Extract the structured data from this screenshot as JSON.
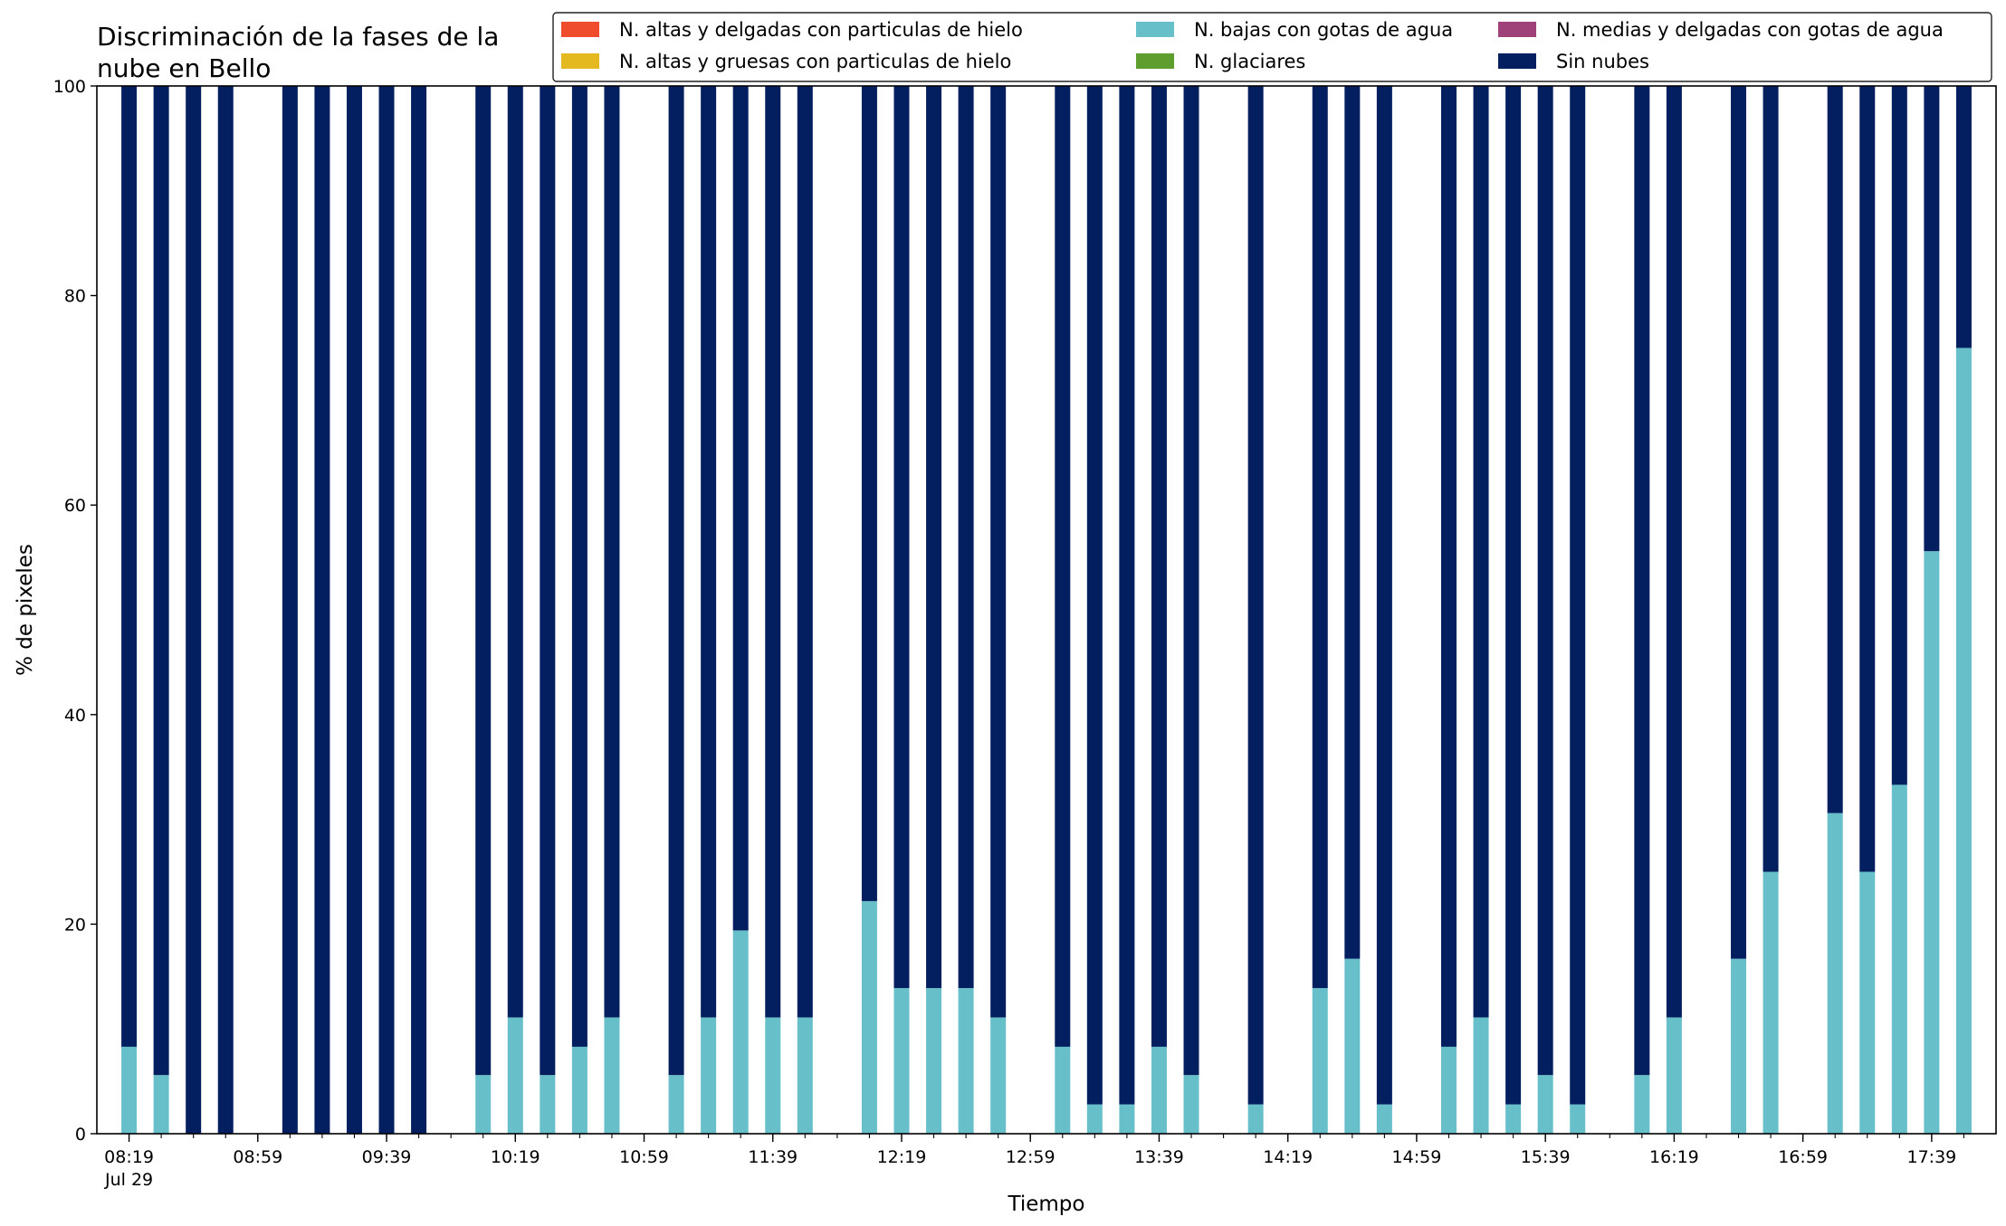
{
  "chart_data": {
    "type": "bar",
    "stacked": true,
    "title": "Discriminación de la fases de la\nnube en Bello",
    "xlabel": "Tiempo",
    "ylabel": "% de pixeles",
    "ylim": [
      0,
      100
    ],
    "yticks": [
      0,
      20,
      40,
      60,
      80,
      100
    ],
    "grid": false,
    "legend_position": "top-right",
    "x_start": "08:19",
    "x_step_minutes": 10,
    "x_count": 58,
    "x_end": "17:49",
    "xtick_labels": [
      "08:19\nJul 29",
      "08:59",
      "09:39",
      "10:19",
      "10:59",
      "11:39",
      "12:19",
      "12:59",
      "13:39",
      "14:19",
      "14:59",
      "15:39",
      "16:19",
      "16:59",
      "17:39"
    ],
    "xtick_label_times": [
      "08:19",
      "08:59",
      "09:39",
      "10:19",
      "10:59",
      "11:39",
      "12:19",
      "12:59",
      "13:39",
      "14:19",
      "14:59",
      "15:39",
      "16:19",
      "16:59",
      "17:39"
    ],
    "series": [
      {
        "name": "N. altas y delgadas con particulas de hielo",
        "color": "#ee4c2c",
        "values": []
      },
      {
        "name": "N. altas y gruesas con particulas de hielo",
        "color": "#e4b81f",
        "values": []
      },
      {
        "name": "N. bajas con gotas de agua",
        "color": "#67bfca",
        "values": [
          {
            "time": "08:19",
            "value": 8.3
          },
          {
            "time": "08:29",
            "value": 5.6
          },
          {
            "time": "08:39",
            "value": 0
          },
          {
            "time": "08:49",
            "value": 0
          },
          {
            "time": "09:09",
            "value": 0
          },
          {
            "time": "09:19",
            "value": 0
          },
          {
            "time": "09:29",
            "value": 0
          },
          {
            "time": "09:39",
            "value": 0
          },
          {
            "time": "09:49",
            "value": 0
          },
          {
            "time": "10:09",
            "value": 5.6
          },
          {
            "time": "10:19",
            "value": 11.1
          },
          {
            "time": "10:29",
            "value": 5.6
          },
          {
            "time": "10:39",
            "value": 8.3
          },
          {
            "time": "10:49",
            "value": 11.1
          },
          {
            "time": "11:09",
            "value": 5.6
          },
          {
            "time": "11:19",
            "value": 11.1
          },
          {
            "time": "11:29",
            "value": 19.4
          },
          {
            "time": "11:39",
            "value": 11.1
          },
          {
            "time": "11:49",
            "value": 11.1
          },
          {
            "time": "12:09",
            "value": 22.2
          },
          {
            "time": "12:19",
            "value": 13.9
          },
          {
            "time": "12:29",
            "value": 13.9
          },
          {
            "time": "12:39",
            "value": 13.9
          },
          {
            "time": "12:49",
            "value": 11.1
          },
          {
            "time": "13:09",
            "value": 8.3
          },
          {
            "time": "13:19",
            "value": 2.8
          },
          {
            "time": "13:29",
            "value": 2.8
          },
          {
            "time": "13:39",
            "value": 8.3
          },
          {
            "time": "13:49",
            "value": 5.6
          },
          {
            "time": "14:09",
            "value": 2.8
          },
          {
            "time": "14:29",
            "value": 13.9
          },
          {
            "time": "14:39",
            "value": 16.7
          },
          {
            "time": "14:49",
            "value": 2.8
          },
          {
            "time": "15:09",
            "value": 8.3
          },
          {
            "time": "15:19",
            "value": 11.1
          },
          {
            "time": "15:29",
            "value": 2.8
          },
          {
            "time": "15:39",
            "value": 5.6
          },
          {
            "time": "15:49",
            "value": 2.8
          },
          {
            "time": "16:09",
            "value": 5.6
          },
          {
            "time": "16:19",
            "value": 11.1
          },
          {
            "time": "16:39",
            "value": 16.7
          },
          {
            "time": "16:49",
            "value": 25.0
          },
          {
            "time": "17:09",
            "value": 30.6
          },
          {
            "time": "17:19",
            "value": 25.0
          },
          {
            "time": "17:29",
            "value": 33.3
          },
          {
            "time": "17:39",
            "value": 55.6
          },
          {
            "time": "17:49",
            "value": 75.0
          }
        ]
      },
      {
        "name": "N. glaciares",
        "color": "#5d9e2e",
        "values": []
      },
      {
        "name": "N. medias y delgadas con gotas de agua",
        "color": "#a0427a",
        "values": []
      },
      {
        "name": "Sin nubes",
        "color": "#031f5f",
        "values": [
          {
            "time": "08:19",
            "value": 91.7
          },
          {
            "time": "08:29",
            "value": 94.4
          },
          {
            "time": "08:39",
            "value": 100
          },
          {
            "time": "08:49",
            "value": 100
          },
          {
            "time": "09:09",
            "value": 100
          },
          {
            "time": "09:19",
            "value": 100
          },
          {
            "time": "09:29",
            "value": 100
          },
          {
            "time": "09:39",
            "value": 100
          },
          {
            "time": "09:49",
            "value": 100
          },
          {
            "time": "10:09",
            "value": 94.4
          },
          {
            "time": "10:19",
            "value": 88.9
          },
          {
            "time": "10:29",
            "value": 94.4
          },
          {
            "time": "10:39",
            "value": 91.7
          },
          {
            "time": "10:49",
            "value": 88.9
          },
          {
            "time": "11:09",
            "value": 94.4
          },
          {
            "time": "11:19",
            "value": 88.9
          },
          {
            "time": "11:29",
            "value": 80.6
          },
          {
            "time": "11:39",
            "value": 88.9
          },
          {
            "time": "11:49",
            "value": 88.9
          },
          {
            "time": "12:09",
            "value": 77.8
          },
          {
            "time": "12:19",
            "value": 86.1
          },
          {
            "time": "12:29",
            "value": 86.1
          },
          {
            "time": "12:39",
            "value": 86.1
          },
          {
            "time": "12:49",
            "value": 88.9
          },
          {
            "time": "13:09",
            "value": 91.7
          },
          {
            "time": "13:19",
            "value": 97.2
          },
          {
            "time": "13:29",
            "value": 97.2
          },
          {
            "time": "13:39",
            "value": 91.7
          },
          {
            "time": "13:49",
            "value": 94.4
          },
          {
            "time": "14:09",
            "value": 97.2
          },
          {
            "time": "14:29",
            "value": 86.1
          },
          {
            "time": "14:39",
            "value": 83.3
          },
          {
            "time": "14:49",
            "value": 97.2
          },
          {
            "time": "15:09",
            "value": 91.7
          },
          {
            "time": "15:19",
            "value": 88.9
          },
          {
            "time": "15:29",
            "value": 97.2
          },
          {
            "time": "15:39",
            "value": 94.4
          },
          {
            "time": "15:49",
            "value": 97.2
          },
          {
            "time": "16:09",
            "value": 94.4
          },
          {
            "time": "16:19",
            "value": 88.9
          },
          {
            "time": "16:39",
            "value": 83.3
          },
          {
            "time": "16:49",
            "value": 75.0
          },
          {
            "time": "17:09",
            "value": 69.4
          },
          {
            "time": "17:19",
            "value": 75.0
          },
          {
            "time": "17:29",
            "value": 66.7
          },
          {
            "time": "17:39",
            "value": 44.4
          },
          {
            "time": "17:49",
            "value": 25.0
          }
        ]
      }
    ]
  }
}
